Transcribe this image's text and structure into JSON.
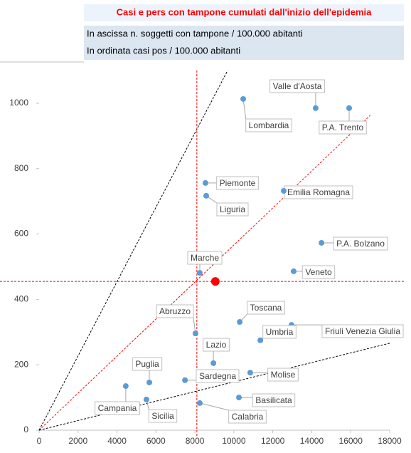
{
  "chart_data": {
    "type": "scatter",
    "title": "Casi e pers con tampone cumulati dall'inizio dell'epidemia",
    "subtitle_lines": [
      "In ascissa n. soggetti con tampone / 100.000 abitanti",
      "In ordinata casi pos / 100.000 abitanti"
    ],
    "xlim": [
      0,
      18000
    ],
    "ylim": [
      0,
      1100
    ],
    "xticks": [
      0,
      2000,
      4000,
      6000,
      8000,
      10000,
      12000,
      14000,
      16000,
      18000
    ],
    "yticks": [
      0,
      200,
      400,
      600,
      800,
      1000
    ],
    "series": [
      {
        "color": "#5b9bd5",
        "labels": [
          "Lombardia",
          "Valle d'Aosta",
          "P.A. Trento",
          "Piemonte",
          "Liguria",
          "Emilia Romagna",
          "P.A. Bolzano",
          "Veneto",
          "Marche",
          "Toscana",
          "Friuli Venezia Giulia",
          "Abruzzo",
          "Lazio",
          "Umbria",
          "Molise",
          "Sardegna",
          "Basilicata",
          "Calabria",
          "Puglia",
          "Campania",
          "Sicilia"
        ],
        "x": [
          10480,
          14200,
          15920,
          8540,
          8580,
          12560,
          14500,
          13070,
          8250,
          10300,
          12960,
          8030,
          8950,
          11360,
          10840,
          7490,
          10260,
          8250,
          5660,
          4450,
          5510
        ],
        "values": [
          1013,
          985,
          985,
          756,
          717,
          732,
          573,
          486,
          481,
          331,
          322,
          296,
          205,
          275,
          176,
          153,
          100,
          83,
          146,
          135,
          94
        ]
      },
      {
        "color": "#ff0000",
        "x": [
          9050
        ],
        "values": [
          455
        ]
      }
    ],
    "reference_lines": [
      {
        "color": "#ff0000",
        "points": [
          [
            0,
            0
          ],
          [
            17000,
            963
          ]
        ]
      },
      {
        "color": "#000000",
        "points": [
          [
            0,
            0
          ],
          [
            9680,
            1100
          ]
        ]
      },
      {
        "color": "#000000",
        "points": [
          [
            0,
            0
          ],
          [
            18000,
            266
          ]
        ]
      }
    ],
    "vline": {
      "color": "#ff0000",
      "x": 8100
    },
    "hline": {
      "color": "#ff0000",
      "y": 455
    }
  }
}
